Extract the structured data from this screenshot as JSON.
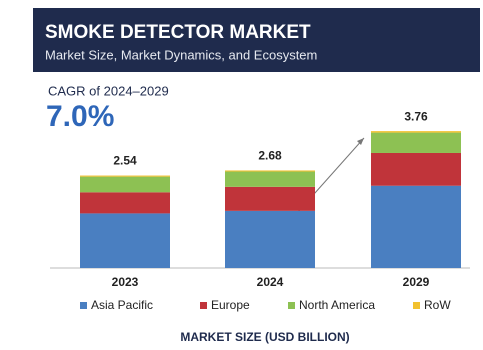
{
  "chart_data": {
    "type": "stacked_bar",
    "title": "SMOKE DETECTOR MARKET",
    "subtitle": "Market Size, Market Dynamics, and  Ecosystem",
    "cagr_label": "CAGR of 2024–2029",
    "cagr": "7.0%",
    "x_label": "MARKET SIZE (USD BILLION)",
    "categories": [
      "2023",
      "2024",
      "2029"
    ],
    "totals": [
      2.54,
      2.68,
      3.76
    ],
    "series": [
      {
        "name": "Asia Pacific",
        "color": "#4a7fc1",
        "values": [
          1.5,
          1.57,
          2.26
        ]
      },
      {
        "name": "Europe",
        "color": "#c0343a",
        "values": [
          0.58,
          0.66,
          0.9
        ]
      },
      {
        "name": "North America",
        "color": "#8dc153",
        "values": [
          0.43,
          0.42,
          0.56
        ]
      },
      {
        "name": "RoW",
        "color": "#f2c12e",
        "values": [
          0.03,
          0.03,
          0.04
        ]
      }
    ],
    "ylim": [
      0,
      4
    ]
  }
}
